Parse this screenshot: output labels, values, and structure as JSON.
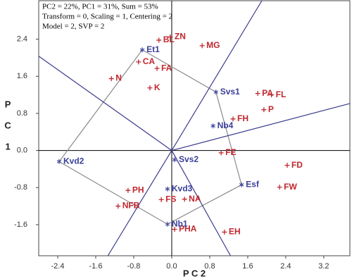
{
  "chart_data": {
    "type": "biplot",
    "info_lines": [
      "PC2 = 22%, PC1 = 31%, Sum = 53%",
      "Transform = 0, Scaling = 1, Centering = 2",
      "Model = 2, SVP = 2"
    ],
    "xlabel": "P C 2",
    "ylabel": "P C 1",
    "xlim": [
      -2.8,
      3.75
    ],
    "ylim": [
      -2.27,
      3.23
    ],
    "xticks": [
      -2.4,
      -1.6,
      -0.8,
      {
        "value": 0,
        "label": "0.0"
      },
      0.8,
      1.6,
      2.4,
      3.2
    ],
    "yticks": [
      -1.6,
      -0.8,
      {
        "value": 0,
        "label": "0.0"
      },
      0.8,
      1.6,
      2.4
    ],
    "series": [
      {
        "marker": "plus",
        "color": "#c0272d",
        "labels": [
          "BL",
          "ZN",
          "MG",
          "CA",
          "FA",
          "N",
          "K",
          "PA",
          "FL",
          "P",
          "FH",
          "FE",
          "FD",
          "FW",
          "PH",
          "FS",
          "NA",
          "NFB",
          "PHA",
          "EH"
        ],
        "x": [
          -0.27,
          -0.03,
          0.64,
          -0.7,
          -0.31,
          -1.27,
          -0.46,
          1.81,
          2.1,
          1.94,
          1.29,
          1.04,
          2.43,
          2.27,
          -0.92,
          -0.22,
          0.27,
          -1.13,
          0.06,
          1.11
        ],
        "y": [
          2.38,
          2.45,
          2.26,
          1.91,
          1.77,
          1.55,
          1.35,
          1.23,
          1.2,
          0.88,
          0.68,
          -0.05,
          -0.32,
          -0.79,
          -0.86,
          -1.06,
          -1.05,
          -1.2,
          -1.7,
          -1.76
        ]
      },
      {
        "marker": "star",
        "color": "#3a3f9a",
        "hull": true,
        "labels": [
          "Et1",
          "Svs1",
          "Nb4",
          "Kvd2",
          "Svs2",
          "Esf",
          "Kvd3",
          "Nb1"
        ],
        "x": [
          -0.62,
          0.93,
          0.87,
          -2.37,
          0.06,
          1.47,
          -0.09,
          -0.09
        ],
        "y": [
          2.17,
          1.26,
          0.53,
          -0.24,
          -0.2,
          -0.74,
          -0.83,
          -1.59
        ]
      }
    ]
  }
}
